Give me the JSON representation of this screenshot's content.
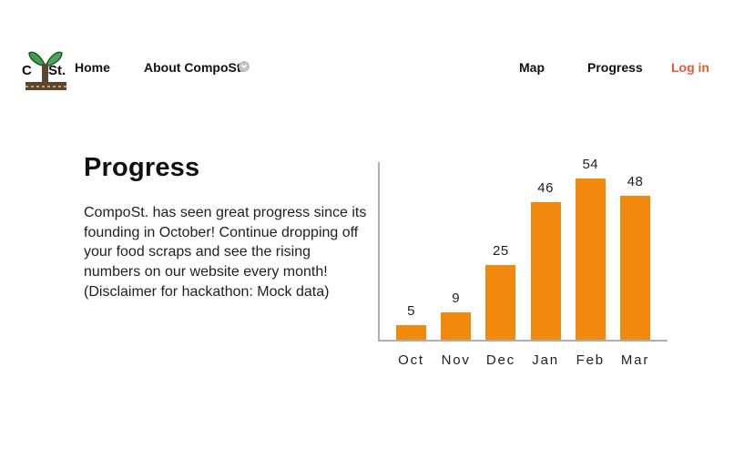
{
  "navbar": {
    "logo": {
      "text_left": "C",
      "text_right": "St."
    },
    "home_label": "Home",
    "about_label": "About CompoSt.",
    "map_label": "Map",
    "progress_label": "Progress",
    "login_label": "Log in"
  },
  "main": {
    "heading": "Progress",
    "paragraph_lines": [
      "CompoSt. has seen great progress since its",
      "founding in October! Continue dropping off",
      "your food scraps and see the rising",
      "numbers on our website every month!",
      "(Disclaimer for hackathon: Mock data)"
    ]
  },
  "chart_data": {
    "type": "bar",
    "categories": [
      "Oct",
      "Nov",
      "Dec",
      "Jan",
      "Feb",
      "Mar"
    ],
    "values": [
      5,
      9,
      25,
      46,
      54,
      48
    ],
    "title": "",
    "xlabel": "",
    "ylabel": "",
    "ylim": [
      0,
      60
    ],
    "grid": false,
    "legend": false,
    "data_labels": true,
    "bar_color": "#f0890d",
    "axis_color": "#aeaeae"
  },
  "colors": {
    "bar_orange": "#f0890d",
    "login_coral": "#e8582f",
    "axis_gray": "#aeaeae",
    "leaf_green": "#3d9e4f",
    "trunk_brown": "#5d4630",
    "text_ink": "#1c1c1c"
  }
}
